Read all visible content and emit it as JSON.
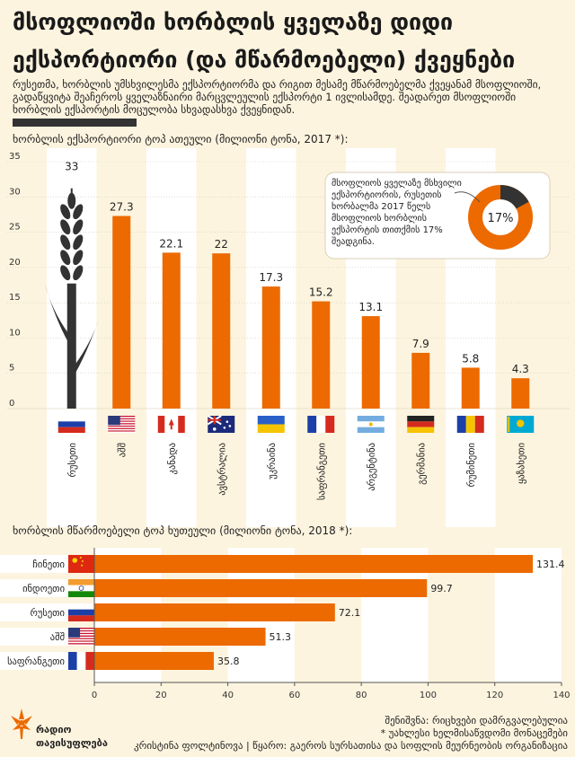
{
  "title_line1": "მსოფლიოში ხორბლის ყველაზე დიდი",
  "title_line2": "ექსპორტიორი (და მწარმოებელი) ქვეყნები",
  "intro": "რუსეთმა, ხორბლის უმსხვილესმა ექსპორტიორმა და რიგით მესამე მწარმოებელმა ქვეყანამ მსოფლიოში, გადაწყვიტა შეაჩეროს ყველაზნაირი მარცვლეულის ექსპორტი 1 ივლისამდე. შეადარეთ მსოფლიოში ხორბლის ექსპორტის მოცულობა სხვადასხვა ქვეყნიდან.",
  "export_subtitle": "ხორბლის ექსპორტიორი ტოპ ათეული (მილიონი ტონა, 2017 *):",
  "production_subtitle": "ხორბლის მწარმოებელი ტოპ ხუთეული  (მილიონი ტონა, 2018 *):",
  "callout_text": "მსოფლიოს ყველაზე მსხვილი ექსპორტიორის, რუსეთის ხორბალმა 2017 წელს მსოფლიოს ხორბლის ექსპორტის თითქმის 17% შეადგინა.",
  "donut_label": "17%",
  "note": "შენიშვნა: რიცხვები დამრგვალებულია",
  "note2": "* უახლესი ხელმისაწვდომი მონაცემები",
  "credits": "კრისტინა ფოლტინოვა | წყარო: გაეროს სურსათისა და სოფლის მეურნეობის ორგანიზაცია",
  "logo_line1": "რადიო",
  "logo_line2": "თავისუფლება",
  "colors": {
    "orange": "#ec6a00",
    "dark": "#333333",
    "stripe": "#ffffff",
    "background": "#fdf4df"
  },
  "chart_data": [
    {
      "type": "bar",
      "categories": [
        "რუსეთი",
        "აშშ",
        "კანადა",
        "ავსტრალია",
        "უკრაინა",
        "საფრანგეთი",
        "არგენტინა",
        "გერმანია",
        "რუმინეთი",
        "ყაზახეთი"
      ],
      "flags": [
        "russia",
        "usa",
        "canada",
        "australia",
        "ukraine",
        "france",
        "argentina",
        "germany",
        "romania",
        "kazakhstan"
      ],
      "values": [
        33,
        27.3,
        22.1,
        22,
        17.3,
        15.2,
        13.1,
        7.9,
        5.8,
        4.3
      ],
      "value_labels": [
        "33",
        "27.3",
        "22.1",
        "22",
        "17.3",
        "15.2",
        "13.1",
        "7.9",
        "5.8",
        "4.3"
      ],
      "yticks": [
        "0",
        "5",
        "10",
        "15",
        "20",
        "25",
        "30",
        "35"
      ],
      "ylim": [
        0,
        35
      ],
      "share_percent": 17,
      "xlabel": "",
      "ylabel": ""
    },
    {
      "type": "bar",
      "orientation": "horizontal",
      "categories": [
        "ჩინეთი",
        "ინდოეთი",
        "რუსეთი",
        "აშშ",
        "საფრანგეთი"
      ],
      "flags": [
        "china",
        "india",
        "russia",
        "usa",
        "france"
      ],
      "values": [
        131.4,
        99.7,
        72.1,
        51.3,
        35.8
      ],
      "value_labels": [
        "131.4",
        "99.7",
        "72.1",
        "51.3",
        "35.8"
      ],
      "xticks": [
        "0",
        "20",
        "40",
        "60",
        "80",
        "100",
        "120",
        "140"
      ],
      "xlim": [
        0,
        140
      ],
      "xlabel": "",
      "ylabel": ""
    }
  ]
}
